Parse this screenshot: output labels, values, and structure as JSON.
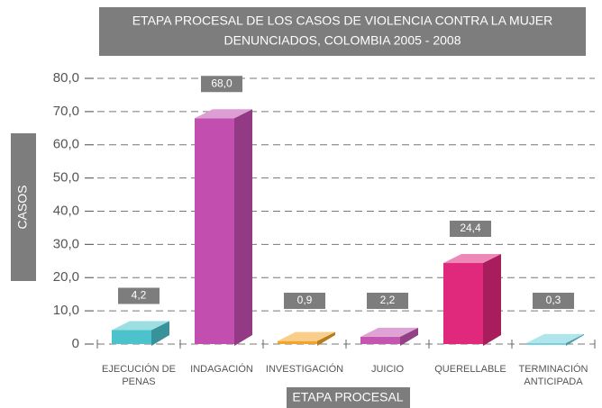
{
  "chart_data": {
    "type": "bar3d",
    "title": [
      "ETAPA PROCESAL DE LOS CASOS DE VIOLENCIA CONTRA LA MUJER",
      "DENUNCIADOS, COLOMBIA 2005 - 2008"
    ],
    "ylabel": "CASOS",
    "xlabel": "ETAPA PROCESAL",
    "categories": [
      "EJECUCIÓN DE PENAS",
      "INDAGACIÓN",
      "INVESTIGACIÓN",
      "JUICIO",
      "QUERELLABLE",
      "TERMINACIÓN ANTICIPADA"
    ],
    "values": [
      4.2,
      68.0,
      0.9,
      2.2,
      24.4,
      0.3
    ],
    "value_labels": [
      "4,2",
      "68,0",
      "0,9",
      "2,2",
      "24,4",
      "0,3"
    ],
    "colors": [
      "#4cc3cc",
      "#c24fb0",
      "#f4a42a",
      "#c456b2",
      "#e0287c",
      "#6fd0dc"
    ],
    "ylim": [
      0,
      80
    ],
    "yticks": [
      0,
      {
        "value": 10,
        "label": "10,0"
      },
      {
        "value": 20,
        "label": "20,0"
      },
      {
        "value": 30,
        "label": "30,0"
      },
      {
        "value": 40,
        "label": "40,0"
      },
      {
        "value": 50,
        "label": "50,0"
      },
      {
        "value": 60,
        "label": "60,0"
      },
      {
        "value": 70,
        "label": "70,0"
      },
      {
        "value": 80,
        "label": "80,0"
      }
    ],
    "grid": true
  }
}
